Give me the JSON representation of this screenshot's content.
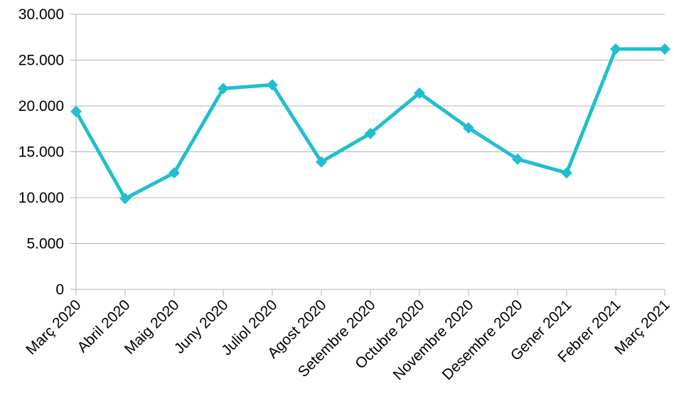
{
  "chart_data": {
    "type": "line",
    "title": "",
    "xlabel": "",
    "ylabel": "",
    "categories": [
      "Març 2020",
      "Abril 2020",
      "Maig 2020",
      "Juny 2020",
      "Juliol 2020",
      "Agost 2020",
      "Setembre 2020",
      "Octubre 2020",
      "Novembre 2020",
      "Desembre 2020",
      "Gener 2021",
      "Febrer 2021",
      "Març 2021"
    ],
    "series": [
      {
        "values": [
          19400,
          9900,
          12700,
          21900,
          22300,
          13900,
          17000,
          21400,
          17600,
          14200,
          12700,
          26200,
          26200
        ],
        "color": "#1fbfcf",
        "marker": "diamond"
      }
    ],
    "ylim": [
      0,
      30000
    ],
    "yticks": [
      0,
      5000,
      10000,
      15000,
      20000,
      25000,
      30000
    ],
    "ytick_labels": [
      "0",
      "5.000",
      "10.000",
      "15.000",
      "20.000",
      "25.000",
      "30.000"
    ],
    "grid": true,
    "legend": "none"
  }
}
